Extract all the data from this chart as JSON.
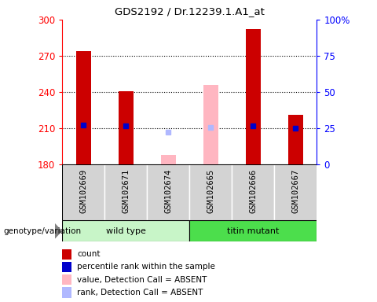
{
  "title": "GDS2192 / Dr.12239.1.A1_at",
  "samples": [
    "GSM102669",
    "GSM102671",
    "GSM102674",
    "GSM102665",
    "GSM102666",
    "GSM102667"
  ],
  "ylim": [
    180,
    300
  ],
  "yticks_left": [
    180,
    210,
    240,
    270,
    300
  ],
  "bar_color_present": "#cc0000",
  "bar_color_absent": "#ffb6c1",
  "rank_color_present": "#0000cc",
  "rank_color_absent": "#b0b8ff",
  "count_values": [
    274,
    241,
    188,
    246,
    292,
    221
  ],
  "count_absent": [
    false,
    false,
    true,
    true,
    false,
    false
  ],
  "rank_values": [
    213,
    212,
    207,
    211,
    212,
    210
  ],
  "rank_absent": [
    false,
    false,
    true,
    true,
    false,
    false
  ],
  "baseline": 180,
  "wt_color": "#90EE90",
  "tm_color": "#4cde4c",
  "gray_bg": "#d3d3d3",
  "genotype_label": "genotype/variation",
  "wt_label": "wild type",
  "tm_label": "titin mutant",
  "right_tick_labels": [
    "0",
    "25",
    "50",
    "75",
    "100%"
  ],
  "grid_lines": [
    210,
    240,
    270
  ],
  "legend_items": [
    {
      "label": "count",
      "color": "#cc0000"
    },
    {
      "label": "percentile rank within the sample",
      "color": "#0000cc"
    },
    {
      "label": "value, Detection Call = ABSENT",
      "color": "#ffb6c1"
    },
    {
      "label": "rank, Detection Call = ABSENT",
      "color": "#b0b8ff"
    }
  ]
}
